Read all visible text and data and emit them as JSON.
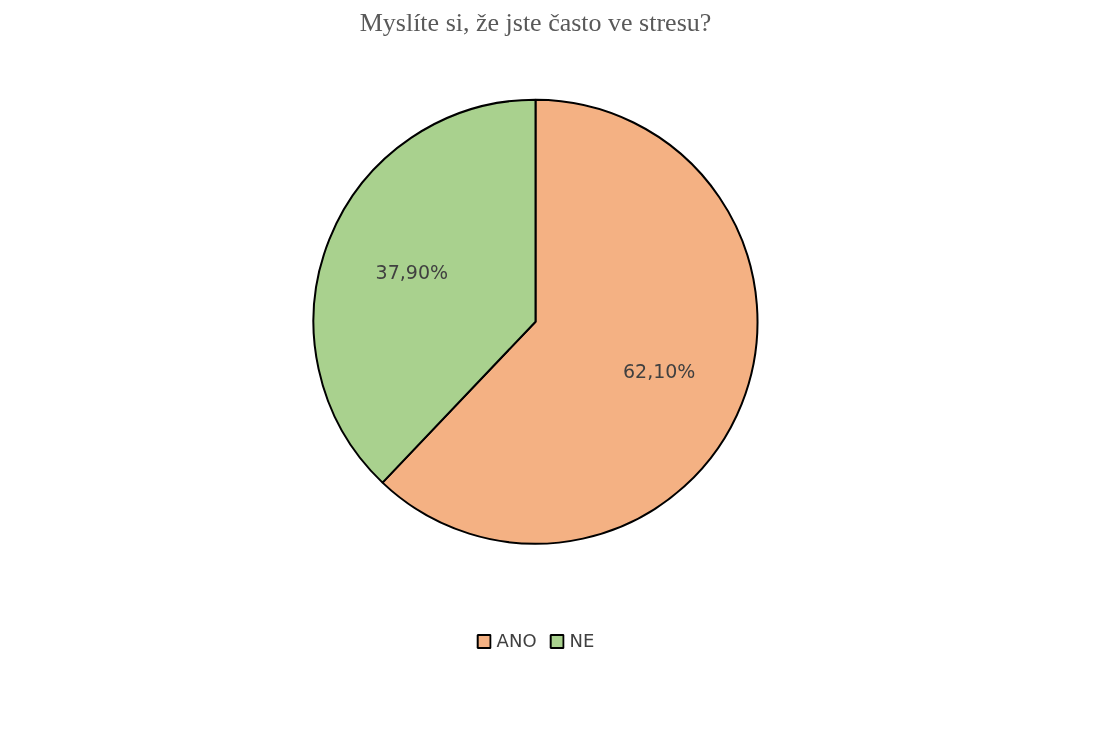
{
  "chart_data": {
    "type": "pie",
    "title": "Myslíte si, že jste často ve stresu?",
    "categories": [
      "ANO",
      "NE"
    ],
    "values": [
      62.1,
      37.9
    ],
    "value_labels": [
      "62,10%",
      "37,90%"
    ],
    "colors": [
      "#f4b183",
      "#a9d18e"
    ],
    "legend": "bottom"
  }
}
